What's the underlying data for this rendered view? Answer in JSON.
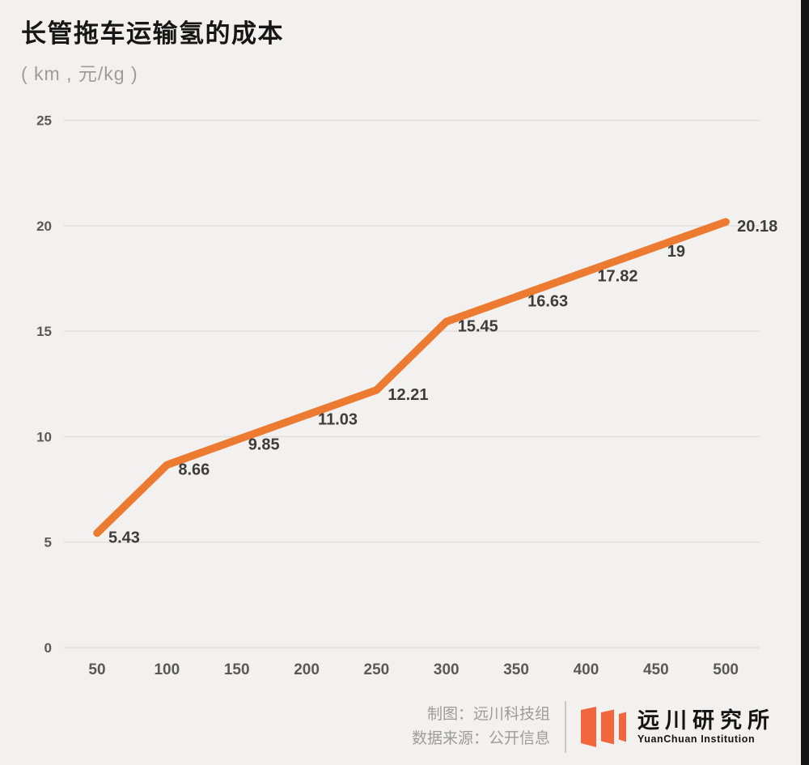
{
  "header": {
    "title": "长管拖车运输氢的成本",
    "subtitle": "( km , 元/kg )"
  },
  "chart_data": {
    "type": "line",
    "title": "长管拖车运输氢的成本",
    "unit_label": "( km , 元/kg )",
    "units": {
      "x": "km",
      "y": "元/kg"
    },
    "x": [
      50,
      100,
      150,
      200,
      250,
      300,
      350,
      400,
      450,
      500
    ],
    "values": [
      5.43,
      8.66,
      9.85,
      11.03,
      12.21,
      15.45,
      16.63,
      17.82,
      19,
      20.18
    ],
    "point_labels": [
      "5.43",
      "8.66",
      "9.85",
      "11.03",
      "12.21",
      "15.45",
      "16.63",
      "17.82",
      "19",
      "20.18"
    ],
    "ylim": [
      0,
      25
    ],
    "yticks": [
      0,
      5,
      10,
      15,
      20,
      25
    ],
    "grid": true,
    "legend": false,
    "line_color": "#EC7A30",
    "label_color": "#3D3D3D",
    "tick_color": "#595959",
    "grid_color": "#DDDCDA"
  },
  "footer": {
    "credit_maker": "制图：远川科技组",
    "credit_source": "数据来源：公开信息",
    "logo_cn": "远川研究所",
    "logo_en": "YuanChuan Institution",
    "logo_color": "#F2653D"
  }
}
